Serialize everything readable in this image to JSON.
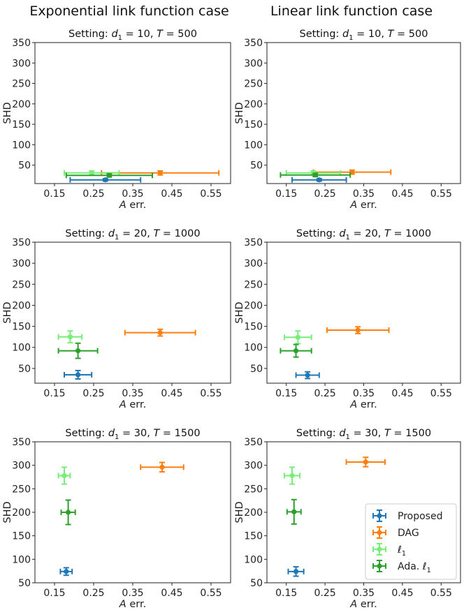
{
  "column_titles": [
    "Exponential link function case",
    "Linear link function case"
  ],
  "colors": {
    "Proposed": "#1f77b4",
    "DAG": "#ff7f0e",
    "l1": "#77ee77",
    "Ada. l1": "#2ca02c"
  },
  "chart_data": [
    {
      "type": "scatter",
      "title": "Setting: d_1 = 10, T = 500",
      "title_parts": {
        "prefix": "Setting: ",
        "var1": "d",
        "sub1": "1",
        "mid": " = 10, ",
        "var2": "T",
        "suffix": " = 500"
      },
      "xlabel": "A err.",
      "ylabel": "SHD",
      "xticks": [
        "0.15",
        "0.25",
        "0.35",
        "0.45",
        "0.55"
      ],
      "yticks": [
        "50",
        "100",
        "150",
        "200",
        "250",
        "300",
        "350"
      ],
      "xlim": [
        0.1,
        0.6
      ],
      "ylim": [
        5,
        350
      ],
      "series": [
        {
          "name": "Proposed",
          "x": 0.28,
          "xerr": 0.09,
          "y": 14,
          "yerr": 3
        },
        {
          "name": "DAG",
          "x": 0.42,
          "xerr": 0.15,
          "y": 31,
          "yerr": 5
        },
        {
          "name": "ℓ1",
          "x": 0.245,
          "xerr": 0.07,
          "y": 31,
          "yerr": 5
        },
        {
          "name": "Ada. ℓ1",
          "x": 0.29,
          "xerr": 0.11,
          "y": 25,
          "yerr": 4
        }
      ]
    },
    {
      "type": "scatter",
      "title": "Setting: d_1 = 10, T = 500",
      "title_parts": {
        "prefix": "Setting: ",
        "var1": "d",
        "sub1": "1",
        "mid": " = 10, ",
        "var2": "T",
        "suffix": " = 500"
      },
      "xlabel": "A err.",
      "ylabel": "SHD",
      "xticks": [
        "0.15",
        "0.25",
        "0.35",
        "0.45",
        "0.55"
      ],
      "yticks": [
        "50",
        "100",
        "150",
        "200",
        "250",
        "300",
        "350"
      ],
      "xlim": [
        0.1,
        0.6
      ],
      "ylim": [
        5,
        350
      ],
      "series": [
        {
          "name": "Proposed",
          "x": 0.235,
          "xerr": 0.07,
          "y": 14,
          "yerr": 3
        },
        {
          "name": "DAG",
          "x": 0.32,
          "xerr": 0.1,
          "y": 33,
          "yerr": 5
        },
        {
          "name": "ℓ1",
          "x": 0.22,
          "xerr": 0.07,
          "y": 31,
          "yerr": 5
        },
        {
          "name": "Ada. ℓ1",
          "x": 0.225,
          "xerr": 0.09,
          "y": 26,
          "yerr": 4
        }
      ]
    },
    {
      "type": "scatter",
      "title": "Setting: d_1 = 20, T = 1000",
      "title_parts": {
        "prefix": "Setting: ",
        "var1": "d",
        "sub1": "1",
        "mid": " = 20, ",
        "var2": "T",
        "suffix": " = 1000"
      },
      "xlabel": "A err.",
      "ylabel": "SHD",
      "xticks": [
        "0.15",
        "0.25",
        "0.35",
        "0.45",
        "0.55"
      ],
      "yticks": [
        "50",
        "100",
        "150",
        "200",
        "250",
        "300",
        "350"
      ],
      "xlim": [
        0.1,
        0.6
      ],
      "ylim": [
        15,
        350
      ],
      "series": [
        {
          "name": "Proposed",
          "x": 0.21,
          "xerr": 0.035,
          "y": 35,
          "yerr": 10
        },
        {
          "name": "DAG",
          "x": 0.42,
          "xerr": 0.09,
          "y": 135,
          "yerr": 8
        },
        {
          "name": "ℓ1",
          "x": 0.19,
          "xerr": 0.03,
          "y": 125,
          "yerr": 14
        },
        {
          "name": "Ada. ℓ1",
          "x": 0.21,
          "xerr": 0.05,
          "y": 92,
          "yerr": 18
        }
      ]
    },
    {
      "type": "scatter",
      "title": "Setting: d_1 = 20, T = 1000",
      "title_parts": {
        "prefix": "Setting: ",
        "var1": "d",
        "sub1": "1",
        "mid": " = 20, ",
        "var2": "T",
        "suffix": " = 1000"
      },
      "xlabel": "A err.",
      "ylabel": "SHD",
      "xticks": [
        "0.15",
        "0.25",
        "0.35",
        "0.45",
        "0.55"
      ],
      "yticks": [
        "50",
        "100",
        "150",
        "200",
        "250",
        "300",
        "350"
      ],
      "xlim": [
        0.1,
        0.6
      ],
      "ylim": [
        15,
        350
      ],
      "series": [
        {
          "name": "Proposed",
          "x": 0.205,
          "xerr": 0.03,
          "y": 34,
          "yerr": 8
        },
        {
          "name": "DAG",
          "x": 0.335,
          "xerr": 0.08,
          "y": 141,
          "yerr": 8
        },
        {
          "name": "ℓ1",
          "x": 0.18,
          "xerr": 0.035,
          "y": 124,
          "yerr": 15
        },
        {
          "name": "Ada. ℓ1",
          "x": 0.175,
          "xerr": 0.04,
          "y": 92,
          "yerr": 15
        }
      ]
    },
    {
      "type": "scatter",
      "title": "Setting: d_1 = 30, T = 1500",
      "title_parts": {
        "prefix": "Setting: ",
        "var1": "d",
        "sub1": "1",
        "mid": " = 30, ",
        "var2": "T",
        "suffix": " = 1500"
      },
      "xlabel": "A err.",
      "ylabel": "SHD",
      "xticks": [
        "0.15",
        "0.25",
        "0.35",
        "0.45",
        "0.55"
      ],
      "yticks": [
        "50",
        "100",
        "150",
        "200",
        "250",
        "300",
        "350"
      ],
      "xlim": [
        0.1,
        0.6
      ],
      "ylim": [
        50,
        350
      ],
      "series": [
        {
          "name": "Proposed",
          "x": 0.18,
          "xerr": 0.015,
          "y": 74,
          "yerr": 8
        },
        {
          "name": "DAG",
          "x": 0.425,
          "xerr": 0.055,
          "y": 296,
          "yerr": 10
        },
        {
          "name": "ℓ1",
          "x": 0.175,
          "xerr": 0.015,
          "y": 278,
          "yerr": 18
        },
        {
          "name": "Ada. ℓ1",
          "x": 0.185,
          "xerr": 0.018,
          "y": 200,
          "yerr": 26
        }
      ]
    },
    {
      "type": "scatter",
      "title": "Setting: d_1 = 30, T = 1500",
      "title_parts": {
        "prefix": "Setting: ",
        "var1": "d",
        "sub1": "1",
        "mid": " = 30, ",
        "var2": "T",
        "suffix": " = 1500"
      },
      "xlabel": "A err.",
      "ylabel": "SHD",
      "xticks": [
        "0.15",
        "0.25",
        "0.35",
        "0.45",
        "0.55"
      ],
      "yticks": [
        "50",
        "100",
        "150",
        "200",
        "250",
        "300",
        "350"
      ],
      "xlim": [
        0.1,
        0.6
      ],
      "ylim": [
        50,
        350
      ],
      "legend": {
        "position": "lower-right",
        "entries": [
          "Proposed",
          "DAG",
          "ℓ1",
          "Ada. ℓ1"
        ]
      },
      "series": [
        {
          "name": "Proposed",
          "x": 0.175,
          "xerr": 0.02,
          "y": 74,
          "yerr": 10
        },
        {
          "name": "DAG",
          "x": 0.355,
          "xerr": 0.05,
          "y": 307,
          "yerr": 10
        },
        {
          "name": "ℓ1",
          "x": 0.165,
          "xerr": 0.02,
          "y": 278,
          "yerr": 18
        },
        {
          "name": "Ada. ℓ1",
          "x": 0.17,
          "xerr": 0.018,
          "y": 201,
          "yerr": 26
        }
      ]
    }
  ]
}
